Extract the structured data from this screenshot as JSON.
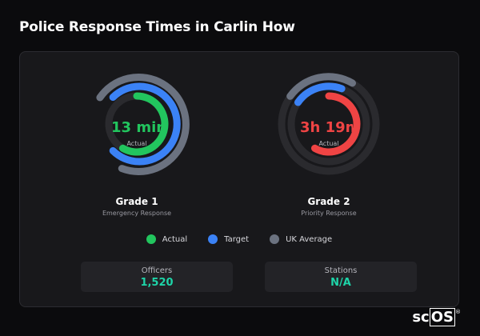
{
  "page": {
    "title": "Police Response Times in Carlin How"
  },
  "gauges": [
    {
      "value": "13 min",
      "value_caption": "Actual",
      "title": "Grade 1",
      "subtitle": "Emergency Response",
      "actual_color": "#22c55e"
    },
    {
      "value": "3h 19m",
      "value_caption": "Actual",
      "title": "Grade 2",
      "subtitle": "Priority Response",
      "actual_color": "#ef4444"
    }
  ],
  "legend": [
    {
      "label": "Actual",
      "color": "#22c55e"
    },
    {
      "label": "Target",
      "color": "#3b82f6"
    },
    {
      "label": "UK Average",
      "color": "#6b7280"
    }
  ],
  "stats": [
    {
      "label": "Officers",
      "value": "1,520"
    },
    {
      "label": "Stations",
      "value": "N/A"
    }
  ],
  "logo": {
    "prefix": "sc",
    "boxed": "OS",
    "mark": "®"
  }
}
